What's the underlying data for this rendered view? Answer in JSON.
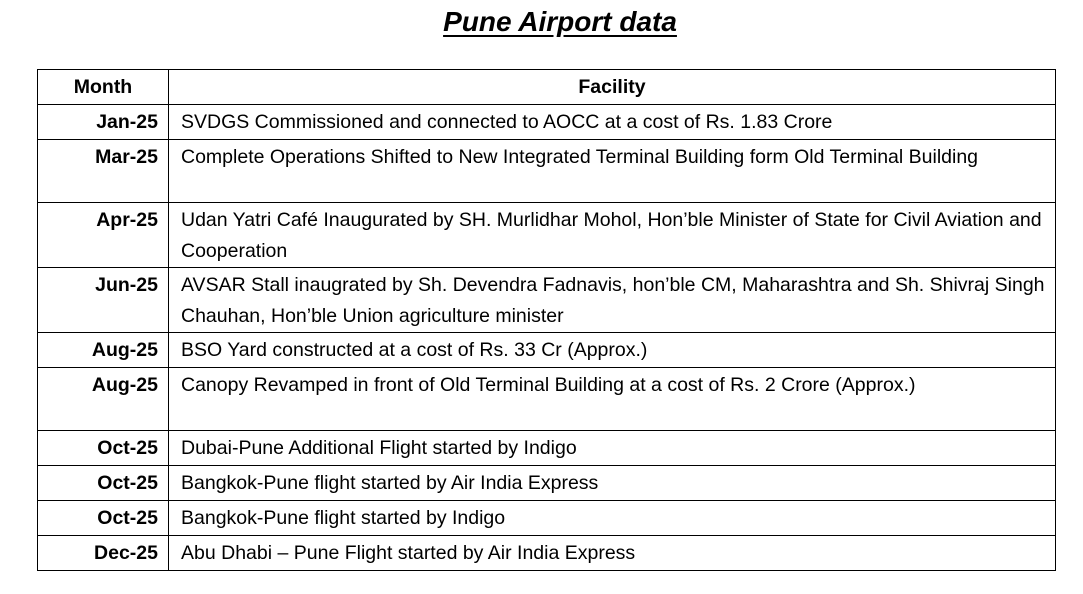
{
  "title": "Pune Airport data",
  "table": {
    "headers": [
      "Month",
      "Facility"
    ],
    "rows": [
      {
        "month": "Jan-25",
        "facility": "SVDGS Commissioned and connected to AOCC at a cost of Rs. 1.83 Crore"
      },
      {
        "month": "Mar-25",
        "facility": "Complete Operations Shifted to New Integrated Terminal Building form Old Terminal Building"
      },
      {
        "month": "Apr-25",
        "facility": "Udan Yatri Café Inaugurated by SH. Murlidhar Mohol, Hon’ble Minister of State for Civil Aviation and Cooperation"
      },
      {
        "month": "Jun-25",
        "facility": "AVSAR Stall inaugrated by Sh. Devendra Fadnavis, hon’ble CM, Maharashtra and Sh. Shivraj Singh Chauhan, Hon’ble Union agriculture minister"
      },
      {
        "month": "Aug-25",
        "facility": "BSO Yard constructed at a cost of Rs. 33 Cr (Approx.)"
      },
      {
        "month": "Aug-25",
        "facility": "Canopy Revamped in front of Old Terminal Building at a cost of Rs. 2 Crore (Approx.)"
      },
      {
        "month": "Oct-25",
        "facility": "Dubai-Pune Additional Flight started by Indigo"
      },
      {
        "month": "Oct-25",
        "facility": "Bangkok-Pune flight started by Air India Express"
      },
      {
        "month": "Oct-25",
        "facility": "Bangkok-Pune flight started by Indigo"
      },
      {
        "month": "Dec-25",
        "facility": "Abu Dhabi – Pune Flight started by Air India Express"
      }
    ]
  }
}
